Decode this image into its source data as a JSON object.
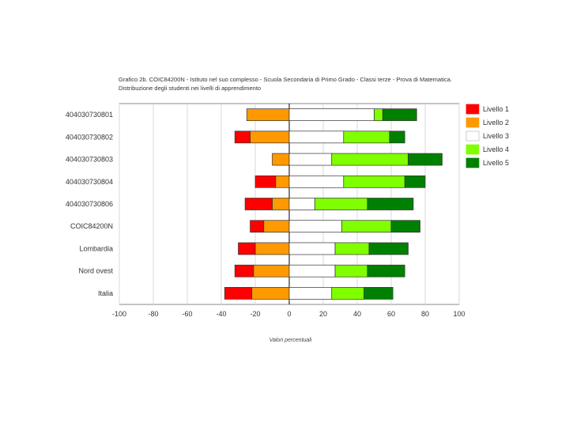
{
  "chart_data": {
    "type": "bar",
    "title": "Grafico 2b. COIC84200N - Istituto nel suo complesso - Scuola Secondaria di Primo Grado - Classi terze - Prova di Matematica. Distribuzione degli studenti nei livelli di apprendimento",
    "xlabel": "Valori percentuali",
    "ylabel": "",
    "xlim": [
      -100,
      100
    ],
    "xticks": [
      -100,
      -80,
      -60,
      -40,
      -20,
      0,
      20,
      40,
      60,
      80,
      100
    ],
    "grid": true,
    "legend_position": "right",
    "categories": [
      "404030730801",
      "404030730802",
      "404030730803",
      "404030730804",
      "404030730806",
      "COIC84200N",
      "Lombardia",
      "Nord ovest",
      "Italia"
    ],
    "series": [
      {
        "name": "Livello 1",
        "color": "#ff0000",
        "values": [
          0,
          9,
          0,
          12,
          16,
          8,
          10,
          11,
          16
        ]
      },
      {
        "name": "Livello 2",
        "color": "#ff9900",
        "values": [
          25,
          23,
          10,
          8,
          10,
          15,
          20,
          21,
          22
        ]
      },
      {
        "name": "Livello 3",
        "color": "#ffffff",
        "values": [
          50,
          32,
          25,
          32,
          15,
          31,
          27,
          27,
          25
        ]
      },
      {
        "name": "Livello 4",
        "color": "#80ff00",
        "values": [
          5,
          27,
          45,
          36,
          31,
          29,
          20,
          19,
          19
        ]
      },
      {
        "name": "Livello 5",
        "color": "#008000",
        "values": [
          20,
          9,
          20,
          12,
          27,
          17,
          23,
          22,
          17
        ]
      }
    ]
  }
}
